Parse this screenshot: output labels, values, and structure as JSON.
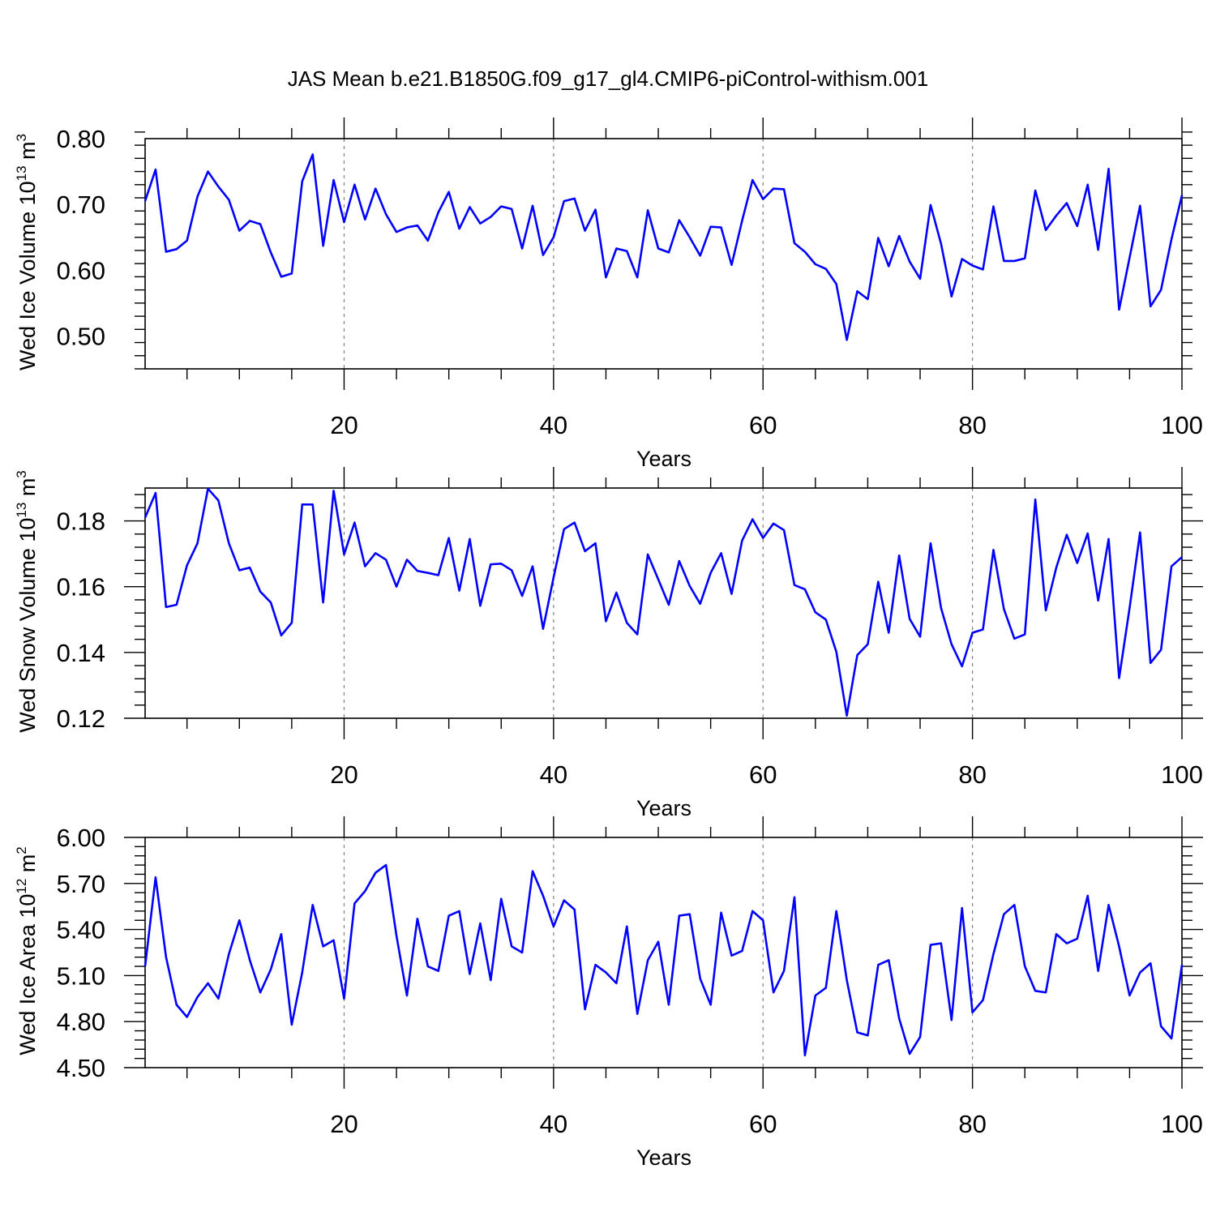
{
  "figure": {
    "title": "JAS Mean b.e21.B1850G.f09_g17_gl4.CMIP6-piControl-withism.001",
    "line_color": "#0000ff",
    "grid_color": "#808080"
  },
  "chart_data": [
    {
      "type": "line",
      "title": "",
      "xlabel": "Years",
      "ylabel": "Wed Ice Volume 10",
      "ylabel_sup": "13",
      "ylabel_unit": " m",
      "ylabel_unit_sup": "3",
      "xlim": [
        1,
        100
      ],
      "ylim": [
        0.45,
        0.8
      ],
      "xticks": [
        20,
        40,
        60,
        80,
        100
      ],
      "xtick_labels": [
        "20",
        "40",
        "60",
        "80",
        "100"
      ],
      "yticks": [
        0.5,
        0.6,
        0.7,
        0.8
      ],
      "ytick_labels": [
        "0.50",
        "0.60",
        "0.70",
        "0.80"
      ],
      "grid": "vertical dashed at major x ticks",
      "series": [
        {
          "color": "#0000ff",
          "x_start": 1,
          "values": [
            0.705,
            0.753,
            0.628,
            0.632,
            0.645,
            0.712,
            0.75,
            0.727,
            0.707,
            0.66,
            0.675,
            0.67,
            0.627,
            0.59,
            0.595,
            0.735,
            0.776,
            0.637,
            0.737,
            0.673,
            0.73,
            0.677,
            0.724,
            0.685,
            0.658,
            0.665,
            0.668,
            0.645,
            0.688,
            0.719,
            0.663,
            0.696,
            0.671,
            0.681,
            0.697,
            0.693,
            0.633,
            0.698,
            0.623,
            0.65,
            0.705,
            0.709,
            0.66,
            0.692,
            0.589,
            0.633,
            0.629,
            0.589,
            0.691,
            0.633,
            0.627,
            0.676,
            0.65,
            0.622,
            0.666,
            0.665,
            0.608,
            0.675,
            0.737,
            0.708,
            0.724,
            0.723,
            0.641,
            0.628,
            0.609,
            0.602,
            0.579,
            0.494,
            0.568,
            0.556,
            0.649,
            0.606,
            0.652,
            0.613,
            0.587,
            0.699,
            0.64,
            0.56,
            0.617,
            0.607,
            0.601,
            0.697,
            0.614,
            0.614,
            0.618,
            0.721,
            0.661,
            0.683,
            0.702,
            0.667,
            0.73,
            0.631,
            0.754,
            0.54,
            0.619,
            0.698,
            0.545,
            0.57,
            0.647,
            0.714
          ]
        }
      ]
    },
    {
      "type": "line",
      "title": "",
      "xlabel": "Years",
      "ylabel": "Wed Snow Volume 10",
      "ylabel_sup": "13",
      "ylabel_unit": " m",
      "ylabel_unit_sup": "3",
      "xlim": [
        1,
        100
      ],
      "ylim": [
        0.12,
        0.19
      ],
      "xticks": [
        20,
        40,
        60,
        80,
        100
      ],
      "xtick_labels": [
        "20",
        "40",
        "60",
        "80",
        "100"
      ],
      "yticks": [
        0.12,
        0.14,
        0.16,
        0.18
      ],
      "ytick_labels": [
        "0.12",
        "0.14",
        "0.16",
        "0.18"
      ],
      "grid": "vertical dashed at major x ticks",
      "series": [
        {
          "color": "#0000ff",
          "x_start": 1,
          "values": [
            0.181,
            0.1885,
            0.1538,
            0.1545,
            0.1665,
            0.1732,
            0.1898,
            0.1862,
            0.1732,
            0.165,
            0.1658,
            0.1585,
            0.1552,
            0.1452,
            0.149,
            0.185,
            0.185,
            0.1552,
            0.1892,
            0.1698,
            0.1795,
            0.1662,
            0.1702,
            0.1682,
            0.16,
            0.1682,
            0.1648,
            0.1642,
            0.1635,
            0.1748,
            0.1588,
            0.1745,
            0.1542,
            0.1668,
            0.167,
            0.165,
            0.1572,
            0.1662,
            0.1472,
            0.1628,
            0.1775,
            0.1795,
            0.1708,
            0.1732,
            0.1495,
            0.1582,
            0.149,
            0.1455,
            0.1698,
            0.1622,
            0.1545,
            0.1678,
            0.1602,
            0.1548,
            0.1642,
            0.1702,
            0.1578,
            0.174,
            0.1805,
            0.1748,
            0.1792,
            0.1772,
            0.1605,
            0.1592,
            0.1522,
            0.15,
            0.1402,
            0.1208,
            0.1392,
            0.1425,
            0.1615,
            0.146,
            0.1695,
            0.1502,
            0.1448,
            0.1732,
            0.1535,
            0.1425,
            0.1358,
            0.146,
            0.147,
            0.1712,
            0.1532,
            0.1442,
            0.1455,
            0.1865,
            0.1528,
            0.1658,
            0.1758,
            0.1672,
            0.1762,
            0.1558,
            0.1745,
            0.1322,
            0.1535,
            0.1765,
            0.1368,
            0.1408,
            0.1662,
            0.169
          ]
        }
      ]
    },
    {
      "type": "line",
      "title": "",
      "xlabel": "Years",
      "ylabel": "Wed Ice Area 10",
      "ylabel_sup": "12",
      "ylabel_unit": " m",
      "ylabel_unit_sup": "2",
      "xlim": [
        1,
        100
      ],
      "ylim": [
        4.5,
        6.0
      ],
      "xticks": [
        20,
        40,
        60,
        80,
        100
      ],
      "xtick_labels": [
        "20",
        "40",
        "60",
        "80",
        "100"
      ],
      "yticks": [
        4.5,
        4.8,
        5.1,
        5.4,
        5.7,
        6.0
      ],
      "ytick_labels": [
        "4.50",
        "4.80",
        "5.10",
        "5.40",
        "5.70",
        "6.00"
      ],
      "grid": "vertical dashed at major x ticks",
      "series": [
        {
          "color": "#0000ff",
          "x_start": 1,
          "values": [
            5.16,
            5.74,
            5.22,
            4.91,
            4.83,
            4.96,
            5.05,
            4.95,
            5.24,
            5.46,
            5.2,
            4.99,
            5.14,
            5.37,
            4.78,
            5.12,
            5.56,
            5.29,
            5.33,
            4.95,
            5.57,
            5.65,
            5.77,
            5.82,
            5.36,
            4.97,
            5.47,
            5.16,
            5.13,
            5.49,
            5.52,
            5.11,
            5.44,
            5.07,
            5.6,
            5.29,
            5.25,
            5.78,
            5.62,
            5.42,
            5.59,
            5.53,
            4.88,
            5.17,
            5.12,
            5.05,
            5.42,
            4.85,
            5.2,
            5.32,
            4.91,
            5.49,
            5.5,
            5.08,
            4.91,
            5.51,
            5.23,
            5.26,
            5.52,
            5.46,
            4.99,
            5.13,
            5.61,
            4.58,
            4.97,
            5.02,
            5.52,
            5.07,
            4.73,
            4.71,
            5.17,
            5.2,
            4.82,
            4.59,
            4.7,
            5.3,
            5.31,
            4.81,
            5.54,
            4.86,
            4.94,
            5.24,
            5.5,
            5.56,
            5.16,
            5.0,
            4.99,
            5.37,
            5.31,
            5.34,
            5.62,
            5.13,
            5.56,
            5.29,
            4.97,
            5.12,
            5.18,
            4.77,
            4.69,
            5.17
          ]
        }
      ]
    }
  ]
}
